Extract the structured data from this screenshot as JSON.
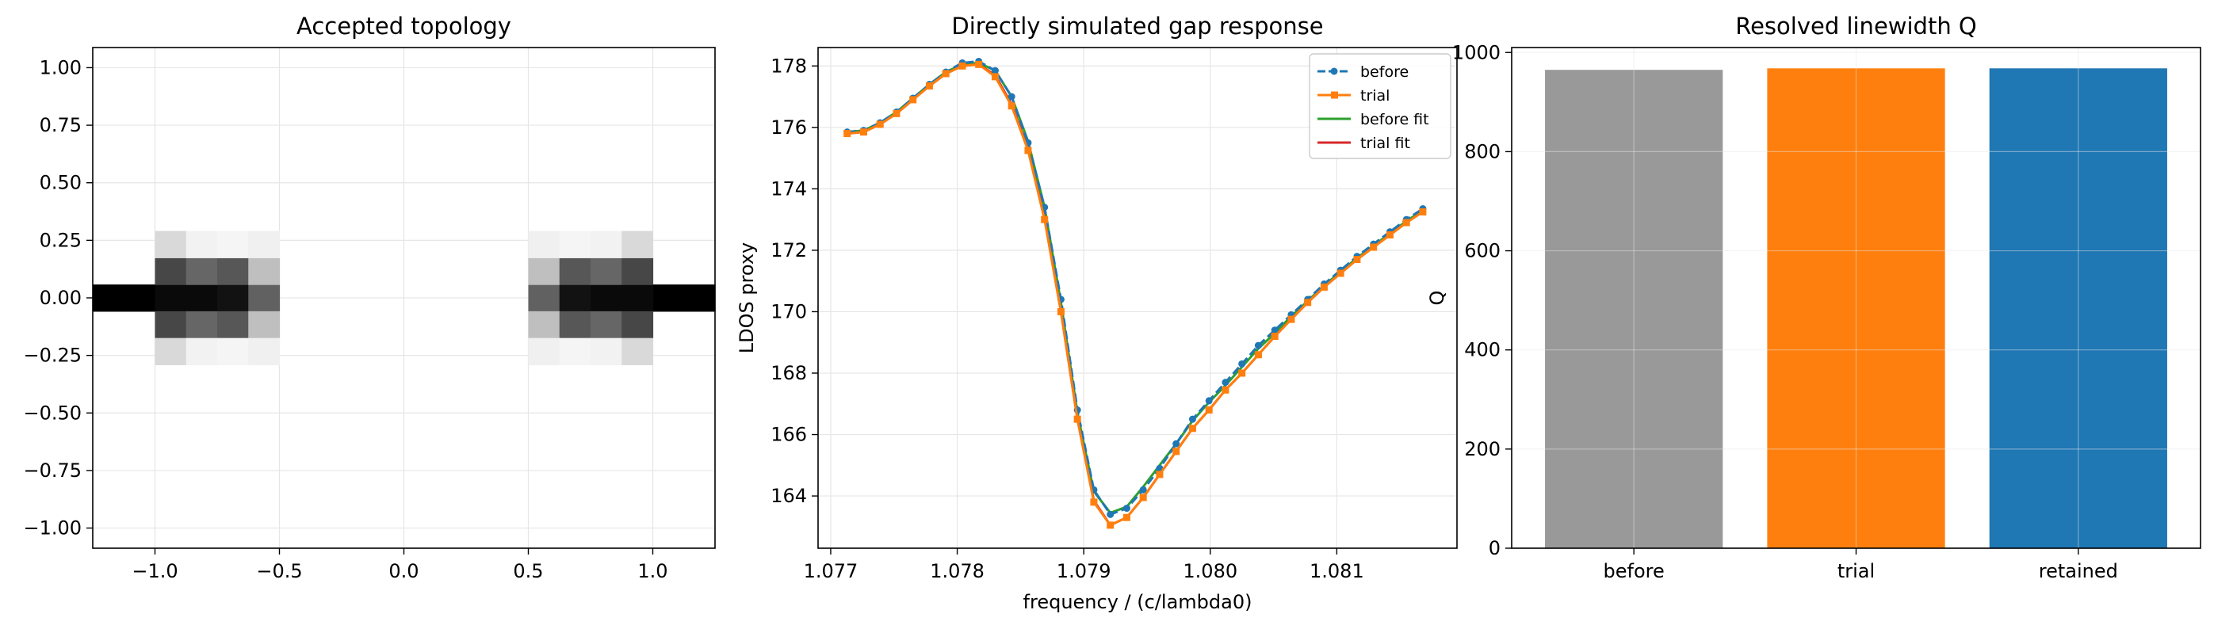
{
  "chart_data": [
    {
      "type": "heatmap",
      "title": "Accepted topology",
      "xlabel": "",
      "ylabel": "",
      "xlim": [
        -1.25,
        1.25
      ],
      "ylim": [
        -1.0875,
        1.0875
      ],
      "x_ticks": [
        -1.0,
        -0.5,
        0.0,
        0.5,
        1.0
      ],
      "x_tick_labels": [
        "−1.0",
        "−0.5",
        "0.0",
        "0.5",
        "1.0"
      ],
      "y_ticks": [
        1.0,
        0.75,
        0.5,
        0.25,
        0.0,
        -0.25,
        -0.5,
        -0.75,
        -1.0
      ],
      "y_tick_labels": [
        "1.00",
        "0.75",
        "0.50",
        "0.25",
        "0.00",
        "−0.25",
        "−0.50",
        "−0.75",
        "−1.00"
      ],
      "grid": true,
      "colormap": "gray_r",
      "cell_width": 0.125,
      "cell_height": 0.1162,
      "cells": [
        {
          "x": -1.25,
          "y": 0.0,
          "w": 0.25,
          "value": 1.0
        },
        {
          "x": -0.9375,
          "y": 0.0,
          "value": 0.96
        },
        {
          "x": -0.8125,
          "y": 0.0,
          "value": 0.96
        },
        {
          "x": -0.6875,
          "y": 0.0,
          "value": 0.93
        },
        {
          "x": -0.5625,
          "y": 0.0,
          "value": 0.62
        },
        {
          "x": -0.9375,
          "y": 0.1162,
          "value": 0.72
        },
        {
          "x": -0.8125,
          "y": 0.1162,
          "value": 0.6
        },
        {
          "x": -0.6875,
          "y": 0.1162,
          "value": 0.66
        },
        {
          "x": -0.5625,
          "y": 0.1162,
          "value": 0.25
        },
        {
          "x": -0.9375,
          "y": -0.1162,
          "value": 0.72
        },
        {
          "x": -0.8125,
          "y": -0.1162,
          "value": 0.6
        },
        {
          "x": -0.6875,
          "y": -0.1162,
          "value": 0.66
        },
        {
          "x": -0.5625,
          "y": -0.1162,
          "value": 0.25
        },
        {
          "x": -0.9375,
          "y": 0.2325,
          "value": 0.15
        },
        {
          "x": -0.8125,
          "y": 0.2325,
          "value": 0.05
        },
        {
          "x": -0.6875,
          "y": 0.2325,
          "value": 0.04
        },
        {
          "x": -0.5625,
          "y": 0.2325,
          "value": 0.06
        },
        {
          "x": -0.9375,
          "y": -0.2325,
          "value": 0.15
        },
        {
          "x": -0.8125,
          "y": -0.2325,
          "value": 0.05
        },
        {
          "x": -0.6875,
          "y": -0.2325,
          "value": 0.04
        },
        {
          "x": -0.5625,
          "y": -0.2325,
          "value": 0.06
        },
        {
          "x": 1.0,
          "y": 0.0,
          "w": 0.25,
          "value": 1.0
        },
        {
          "x": 0.5625,
          "y": 0.0,
          "value": 0.62
        },
        {
          "x": 0.6875,
          "y": 0.0,
          "value": 0.93
        },
        {
          "x": 0.8125,
          "y": 0.0,
          "value": 0.96
        },
        {
          "x": 0.9375,
          "y": 0.0,
          "value": 0.96
        },
        {
          "x": 0.5625,
          "y": 0.1162,
          "value": 0.25
        },
        {
          "x": 0.6875,
          "y": 0.1162,
          "value": 0.66
        },
        {
          "x": 0.8125,
          "y": 0.1162,
          "value": 0.6
        },
        {
          "x": 0.9375,
          "y": 0.1162,
          "value": 0.72
        },
        {
          "x": 0.5625,
          "y": -0.1162,
          "value": 0.25
        },
        {
          "x": 0.6875,
          "y": -0.1162,
          "value": 0.66
        },
        {
          "x": 0.8125,
          "y": -0.1162,
          "value": 0.6
        },
        {
          "x": 0.9375,
          "y": -0.1162,
          "value": 0.72
        },
        {
          "x": 0.5625,
          "y": 0.2325,
          "value": 0.06
        },
        {
          "x": 0.6875,
          "y": 0.2325,
          "value": 0.04
        },
        {
          "x": 0.8125,
          "y": 0.2325,
          "value": 0.05
        },
        {
          "x": 0.9375,
          "y": 0.2325,
          "value": 0.15
        },
        {
          "x": 0.5625,
          "y": -0.2325,
          "value": 0.06
        },
        {
          "x": 0.6875,
          "y": -0.2325,
          "value": 0.04
        },
        {
          "x": 0.8125,
          "y": -0.2325,
          "value": 0.05
        },
        {
          "x": 0.9375,
          "y": -0.2325,
          "value": 0.15
        }
      ]
    },
    {
      "type": "line",
      "title": "Directly simulated gap response",
      "xlabel": "frequency / (c/lambda0)",
      "ylabel": "LDOS proxy",
      "xlim": [
        1.0769,
        1.08195
      ],
      "ylim": [
        162.3,
        178.6
      ],
      "x_ticks": [
        1.077,
        1.078,
        1.079,
        1.08,
        1.081
      ],
      "x_tick_labels": [
        "1.077",
        "1.078",
        "1.079",
        "1.080",
        "1.081"
      ],
      "y_ticks": [
        164,
        166,
        168,
        170,
        172,
        174,
        176,
        178
      ],
      "y_tick_labels": [
        "164",
        "166",
        "168",
        "170",
        "172",
        "174",
        "176",
        "178"
      ],
      "grid": true,
      "legend_position": "top-right",
      "x": [
        1.07713,
        1.07726,
        1.07739,
        1.07752,
        1.07765,
        1.07778,
        1.07791,
        1.07804,
        1.07817,
        1.0783,
        1.07843,
        1.07856,
        1.07869,
        1.07882,
        1.07895,
        1.07908,
        1.07921,
        1.07934,
        1.07947,
        1.0796,
        1.07973,
        1.07986,
        1.07999,
        1.08012,
        1.08025,
        1.08038,
        1.08051,
        1.08064,
        1.08077,
        1.0809,
        1.08103,
        1.08116,
        1.08129,
        1.08142,
        1.08155,
        1.08168
      ],
      "series": [
        {
          "name": "before",
          "style": "dashed-dot-markers",
          "color": "#1f77b4",
          "values": [
            175.85,
            175.9,
            176.15,
            176.5,
            176.95,
            177.4,
            177.8,
            178.1,
            178.15,
            177.85,
            177.0,
            175.5,
            173.4,
            170.4,
            166.8,
            164.2,
            163.4,
            163.6,
            164.2,
            164.9,
            165.7,
            166.5,
            167.1,
            167.7,
            168.3,
            168.9,
            169.4,
            169.9,
            170.4,
            170.9,
            171.35,
            171.8,
            172.2,
            172.6,
            173.0,
            173.35
          ]
        },
        {
          "name": "trial",
          "style": "solid-square-markers",
          "color": "#ff7f0e",
          "values": [
            175.8,
            175.85,
            176.1,
            176.45,
            176.9,
            177.35,
            177.75,
            178.0,
            178.05,
            177.65,
            176.7,
            175.25,
            173.0,
            170.0,
            166.5,
            163.8,
            163.05,
            163.3,
            163.95,
            164.7,
            165.45,
            166.2,
            166.8,
            167.45,
            168.0,
            168.6,
            169.2,
            169.75,
            170.3,
            170.8,
            171.25,
            171.7,
            172.1,
            172.5,
            172.9,
            173.25
          ]
        },
        {
          "name": "before fit",
          "style": "solid",
          "color": "#2ca02c",
          "values": [
            175.85,
            175.9,
            176.15,
            176.5,
            176.95,
            177.4,
            177.8,
            178.05,
            178.1,
            177.85,
            177.0,
            175.55,
            173.4,
            170.3,
            166.7,
            164.15,
            163.45,
            163.65,
            164.3,
            165.0,
            165.7,
            166.45,
            167.05,
            167.6,
            168.2,
            168.8,
            169.3,
            169.85,
            170.35,
            170.85,
            171.3,
            171.75,
            172.15,
            172.55,
            172.95,
            173.3
          ]
        },
        {
          "name": "trial fit",
          "style": "solid",
          "color": "#d62728",
          "values": [
            175.8,
            175.85,
            176.1,
            176.45,
            176.9,
            177.35,
            177.75,
            178.0,
            178.05,
            177.7,
            176.75,
            175.3,
            173.05,
            170.0,
            166.5,
            163.85,
            163.05,
            163.3,
            163.95,
            164.7,
            165.45,
            166.2,
            166.8,
            167.45,
            168.0,
            168.6,
            169.2,
            169.75,
            170.3,
            170.8,
            171.25,
            171.7,
            172.1,
            172.5,
            172.9,
            173.25
          ]
        }
      ]
    },
    {
      "type": "bar",
      "title": "Resolved linewidth Q",
      "xlabel": "",
      "ylabel": "Q",
      "ylim": [
        0,
        1010
      ],
      "y_ticks": [
        0,
        200,
        400,
        600,
        800,
        1000
      ],
      "y_tick_labels": [
        "0",
        "200",
        "400",
        "600",
        "800",
        "1000"
      ],
      "grid": true,
      "categories": [
        "before",
        "trial",
        "retained"
      ],
      "values": [
        965,
        968,
        968
      ],
      "colors": [
        "#999999",
        "#ff7f0e",
        "#1f77b4"
      ]
    }
  ]
}
